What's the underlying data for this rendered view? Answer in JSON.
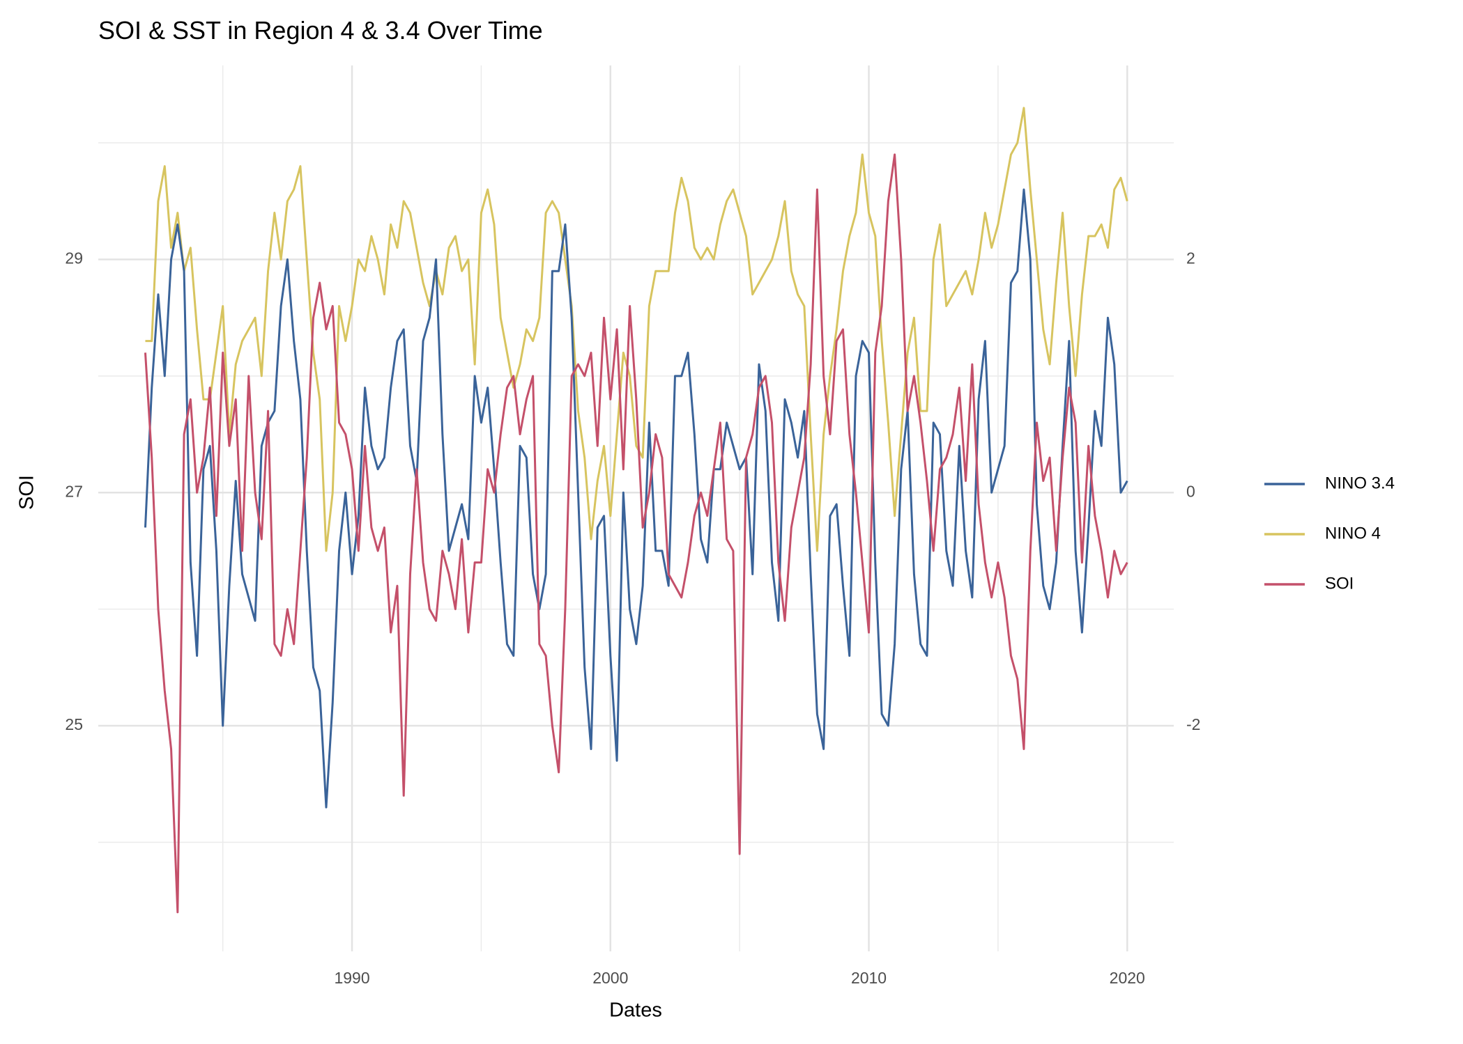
{
  "chart_data": {
    "type": "line",
    "title": "SOI & SST in Region 4 & 3.4 Over Time",
    "x_label": "Dates",
    "y_label": "SOI",
    "xlim": [
      1980.18,
      2021.8
    ],
    "xticks": [
      1990,
      2000,
      2010,
      2020
    ],
    "x_minor_ticks": [
      1985,
      1995,
      2005,
      2015
    ],
    "ylim": [
      23.064,
      30.664
    ],
    "yticks": [
      25,
      27,
      29
    ],
    "y_minor_ticks": [
      24,
      26,
      28,
      30
    ],
    "y2lim": [
      -3.936,
      3.664
    ],
    "y2ticks": [
      -2,
      0,
      2
    ],
    "grid": true,
    "legend": "right",
    "x": [
      1982,
      1982.25,
      1982.5,
      1982.75,
      1983,
      1983.25,
      1983.5,
      1983.75,
      1984,
      1984.25,
      1984.5,
      1984.75,
      1985,
      1985.25,
      1985.5,
      1985.75,
      1986,
      1986.25,
      1986.5,
      1986.75,
      1987,
      1987.25,
      1987.5,
      1987.75,
      1988,
      1988.25,
      1988.5,
      1988.75,
      1989,
      1989.25,
      1989.5,
      1989.75,
      1990,
      1990.25,
      1990.5,
      1990.75,
      1991,
      1991.25,
      1991.5,
      1991.75,
      1992,
      1992.25,
      1992.5,
      1992.75,
      1993,
      1993.25,
      1993.5,
      1993.75,
      1994,
      1994.25,
      1994.5,
      1994.75,
      1995,
      1995.25,
      1995.5,
      1995.75,
      1996,
      1996.25,
      1996.5,
      1996.75,
      1997,
      1997.25,
      1997.5,
      1997.75,
      1998,
      1998.25,
      1998.5,
      1998.75,
      1999,
      1999.25,
      1999.5,
      1999.75,
      2000,
      2000.25,
      2000.5,
      2000.75,
      2001,
      2001.25,
      2001.5,
      2001.75,
      2002,
      2002.25,
      2002.5,
      2002.75,
      2003,
      2003.25,
      2003.5,
      2003.75,
      2004,
      2004.25,
      2004.5,
      2004.75,
      2005,
      2005.25,
      2005.5,
      2005.75,
      2006,
      2006.25,
      2006.5,
      2006.75,
      2007,
      2007.25,
      2007.5,
      2007.75,
      2008,
      2008.25,
      2008.5,
      2008.75,
      2009,
      2009.25,
      2009.5,
      2009.75,
      2010,
      2010.25,
      2010.5,
      2010.75,
      2011,
      2011.25,
      2011.5,
      2011.75,
      2012,
      2012.25,
      2012.5,
      2012.75,
      2013,
      2013.25,
      2013.5,
      2013.75,
      2014,
      2014.25,
      2014.5,
      2014.75,
      2015,
      2015.25,
      2015.5,
      2015.75,
      2016,
      2016.25,
      2016.5,
      2016.75,
      2017,
      2017.25,
      2017.5,
      2017.75,
      2018,
      2018.25,
      2018.5,
      2018.75,
      2019,
      2019.25,
      2019.5,
      2019.75,
      2020
    ],
    "series": [
      {
        "name": "NINO 3.4",
        "color": "#3a6399",
        "values": [
          26.7,
          27.9,
          28.7,
          28.0,
          29.0,
          29.3,
          28.9,
          26.4,
          25.6,
          27.2,
          27.4,
          26.5,
          25.0,
          26.2,
          27.1,
          26.3,
          26.1,
          25.9,
          27.4,
          27.6,
          27.7,
          28.6,
          29.0,
          28.3,
          27.8,
          26.5,
          25.5,
          25.3,
          24.3,
          25.2,
          26.5,
          27.0,
          26.3,
          26.8,
          27.9,
          27.4,
          27.2,
          27.3,
          27.9,
          28.3,
          28.4,
          27.4,
          27.1,
          28.3,
          28.5,
          29.0,
          27.5,
          26.5,
          26.7,
          26.9,
          26.6,
          28.0,
          27.6,
          27.9,
          27.2,
          26.4,
          25.7,
          25.6,
          27.4,
          27.3,
          26.3,
          26.0,
          26.3,
          28.9,
          28.9,
          29.3,
          28.5,
          27.0,
          25.5,
          24.8,
          26.7,
          26.8,
          25.6,
          24.7,
          27.0,
          26.0,
          25.7,
          26.2,
          27.6,
          26.5,
          26.5,
          26.2,
          28.0,
          28.0,
          28.2,
          27.5,
          26.6,
          26.4,
          27.2,
          27.2,
          27.6,
          27.4,
          27.2,
          27.3,
          26.3,
          28.1,
          27.7,
          26.4,
          25.9,
          27.8,
          27.6,
          27.3,
          27.7,
          26.3,
          25.1,
          24.8,
          26.8,
          26.9,
          26.2,
          25.6,
          28.0,
          28.3,
          28.2,
          26.4,
          25.1,
          25.0,
          25.7,
          27.2,
          27.7,
          26.3,
          25.7,
          25.6,
          27.6,
          27.5,
          26.5,
          26.2,
          27.4,
          26.5,
          26.1,
          27.8,
          28.3,
          27.0,
          27.2,
          27.4,
          28.8,
          28.9,
          29.6,
          29.0,
          26.9,
          26.2,
          26.0,
          26.4,
          27.4,
          28.3,
          26.5,
          25.8,
          26.7,
          27.7,
          27.4,
          28.5,
          28.1,
          27.0,
          27.1
        ]
      },
      {
        "name": "NINO 4",
        "color": "#d7c45f",
        "values": [
          28.3,
          28.3,
          29.5,
          29.8,
          29.1,
          29.4,
          28.9,
          29.1,
          28.4,
          27.8,
          27.8,
          28.2,
          28.6,
          27.5,
          28.1,
          28.3,
          28.4,
          28.5,
          28.0,
          28.9,
          29.4,
          29.0,
          29.5,
          29.6,
          29.8,
          29.0,
          28.2,
          27.8,
          26.5,
          27.0,
          28.6,
          28.3,
          28.6,
          29.0,
          28.9,
          29.2,
          29.0,
          28.7,
          29.3,
          29.1,
          29.5,
          29.4,
          29.1,
          28.8,
          28.6,
          28.9,
          28.7,
          29.1,
          29.2,
          28.9,
          29.0,
          28.1,
          29.4,
          29.6,
          29.3,
          28.5,
          28.2,
          27.9,
          28.1,
          28.4,
          28.3,
          28.5,
          29.4,
          29.5,
          29.4,
          29.0,
          28.6,
          27.7,
          27.3,
          26.6,
          27.1,
          27.4,
          26.8,
          27.5,
          28.2,
          28.0,
          27.4,
          27.3,
          28.6,
          28.9,
          28.9,
          28.9,
          29.4,
          29.7,
          29.5,
          29.1,
          29.0,
          29.1,
          29.0,
          29.3,
          29.5,
          29.6,
          29.4,
          29.2,
          28.7,
          28.8,
          28.9,
          29.0,
          29.2,
          29.5,
          28.9,
          28.7,
          28.6,
          27.5,
          26.5,
          27.5,
          28.0,
          28.4,
          28.9,
          29.2,
          29.4,
          29.9,
          29.4,
          29.2,
          28.3,
          27.6,
          26.8,
          27.5,
          28.2,
          28.5,
          27.7,
          27.7,
          29.0,
          29.3,
          28.6,
          28.7,
          28.8,
          28.9,
          28.7,
          29.0,
          29.4,
          29.1,
          29.3,
          29.6,
          29.9,
          30.0,
          30.3,
          29.6,
          29.0,
          28.4,
          28.1,
          28.8,
          29.4,
          28.6,
          28.0,
          28.7,
          29.2,
          29.2,
          29.3,
          29.1,
          29.6,
          29.7,
          29.5
        ]
      },
      {
        "name": "SOI",
        "color": "#c4506a",
        "axis": "y2",
        "values": [
          1.2,
          0.3,
          -1.0,
          -1.7,
          -2.2,
          -3.6,
          0.5,
          0.8,
          0.0,
          0.3,
          0.9,
          -0.2,
          1.2,
          0.4,
          0.8,
          -0.5,
          1.0,
          0.0,
          -0.4,
          0.7,
          -1.3,
          -1.4,
          -1.0,
          -1.3,
          -0.5,
          0.3,
          1.5,
          1.8,
          1.4,
          1.6,
          0.6,
          0.5,
          0.2,
          -0.5,
          0.4,
          -0.3,
          -0.5,
          -0.3,
          -1.2,
          -0.8,
          -2.6,
          -0.7,
          0.2,
          -0.6,
          -1.0,
          -1.1,
          -0.5,
          -0.7,
          -1.0,
          -0.4,
          -1.2,
          -0.6,
          -0.6,
          0.2,
          0.0,
          0.5,
          0.9,
          1.0,
          0.5,
          0.8,
          1.0,
          -1.3,
          -1.4,
          -2.0,
          -2.4,
          -1.0,
          1.0,
          1.1,
          1.0,
          1.2,
          0.4,
          1.5,
          0.8,
          1.4,
          0.2,
          1.6,
          0.8,
          -0.3,
          0.0,
          0.5,
          0.3,
          -0.7,
          -0.8,
          -0.9,
          -0.6,
          -0.2,
          0.0,
          -0.2,
          0.2,
          0.6,
          -0.4,
          -0.5,
          -3.1,
          0.3,
          0.5,
          0.9,
          1.0,
          0.6,
          -0.6,
          -1.1,
          -0.3,
          0.0,
          0.3,
          1.1,
          2.6,
          1.0,
          0.5,
          1.3,
          1.4,
          0.5,
          0.0,
          -0.6,
          -1.2,
          1.2,
          1.6,
          2.5,
          2.9,
          2.0,
          0.7,
          1.0,
          0.6,
          0.1,
          -0.5,
          0.2,
          0.3,
          0.5,
          0.9,
          0.1,
          1.1,
          -0.1,
          -0.6,
          -0.9,
          -0.6,
          -0.9,
          -1.4,
          -1.6,
          -2.2,
          -0.5,
          0.6,
          0.1,
          0.3,
          -0.5,
          0.3,
          0.9,
          0.6,
          -0.6,
          0.4,
          -0.2,
          -0.5,
          -0.9,
          -0.5,
          -0.7,
          -0.6
        ]
      }
    ]
  }
}
